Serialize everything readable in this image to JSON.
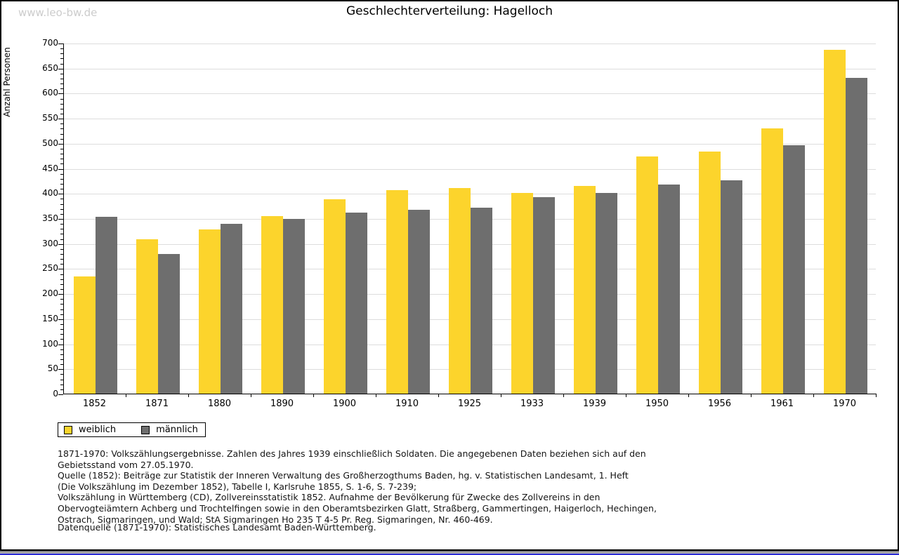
{
  "watermark": "www.leo-bw.de",
  "chart_data": {
    "type": "bar",
    "title": "Geschlechterverteilung: Hagelloch",
    "xlabel": "",
    "ylabel": "Anzahl Personen",
    "ylim": [
      0,
      700
    ],
    "ytick_major_step": 50,
    "ytick_minor_step": 10,
    "grid": true,
    "legend_position": "bottom-left",
    "categories": [
      "1852",
      "1871",
      "1880",
      "1890",
      "1900",
      "1910",
      "1925",
      "1933",
      "1939",
      "1950",
      "1956",
      "1961",
      "1970"
    ],
    "series": [
      {
        "name": "weiblich",
        "color": "#FCD42C",
        "values": [
          234,
          308,
          328,
          354,
          388,
          406,
          410,
          400,
          414,
          473,
          483,
          529,
          686
        ]
      },
      {
        "name": "männlich",
        "color": "#6E6E6E",
        "values": [
          353,
          278,
          339,
          348,
          361,
          367,
          371,
          392,
          400,
          417,
          426,
          496,
          630
        ]
      }
    ]
  },
  "legend": {
    "items": [
      {
        "label": "weiblich",
        "color": "#FCD42C"
      },
      {
        "label": "männlich",
        "color": "#6E6E6E"
      }
    ]
  },
  "footnote_lines": [
    "1871-1970: Volkszählungsergebnisse. Zahlen des Jahres 1939 einschließlich Soldaten. Die angegebenen Daten beziehen sich auf den",
    "Gebietsstand vom 27.05.1970.",
    "Quelle (1852): Beiträge zur Statistik der Inneren Verwaltung des Großherzogthums Baden, hg. v. Statistischen Landesamt, 1. Heft",
    "(Die Volkszählung im Dezember 1852), Tabelle I, Karlsruhe 1855, S. 1-6, S. 7-239;",
    "Volkszählung in Württemberg (CD), Zollvereinsstatistik 1852. Aufnahme der Bevölkerung für Zwecke des Zollvereins in den",
    "Obervogteiämtern Achberg und Trochtelfingen sowie in den Oberamtsbezirken Glatt, Straßberg, Gammertingen, Haigerloch, Hechingen,",
    "Ostrach, Sigmaringen, und Wald; StA Sigmaringen Ho 235 T 4-5 Pr. Reg. Sigmaringen, Nr. 460-469."
  ],
  "datasource": "Datenquelle (1871-1970): Statistisches Landesamt Baden-Württemberg.",
  "colors": {
    "gridline": "#DDDDDD",
    "axis": "#000000",
    "watermark": "#CCCCCC",
    "bottom_bar_blue": "#2B2BD5"
  }
}
